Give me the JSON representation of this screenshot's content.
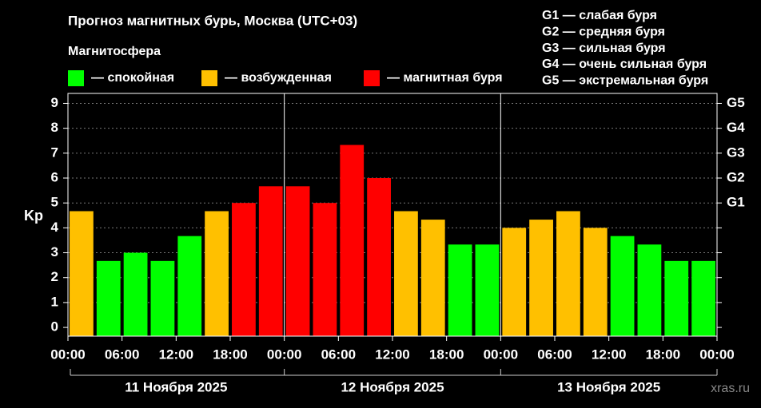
{
  "chart_data": {
    "type": "bar",
    "title": "Прогноз магнитных бурь, Москва (UTC+03)",
    "legend_title": "Магнитосфера",
    "legend": [
      {
        "label": "— спокойная",
        "color": "#00ff00"
      },
      {
        "label": "— возбужденная",
        "color": "#ffc000"
      },
      {
        "label": "— магнитная буря",
        "color": "#ff0000"
      }
    ],
    "storm_levels": [
      "G1 — слабая буря",
      "G2 — средняя буря",
      "G3 — сильная буря",
      "G4 — очень сильная буря",
      "G5 — экстремальная буря"
    ],
    "ylabel": "Kp",
    "x": [
      1.5,
      4.5,
      7.5,
      10.5,
      13.5,
      16.5,
      19.5,
      22.5,
      25.5,
      28.5,
      31.5,
      34.5,
      37.5,
      40.5,
      43.5,
      46.5,
      49.5,
      52.5,
      55.5,
      58.5,
      61.5,
      64.5,
      67.5,
      70.5
    ],
    "values": [
      4.67,
      2.67,
      3,
      2.67,
      3.67,
      4.67,
      5,
      5.67,
      5.67,
      5,
      7.33,
      6,
      4.67,
      4.33,
      3.33,
      3.33,
      4,
      4.33,
      4.67,
      4,
      3.67,
      3.33,
      2.67,
      2.67
    ],
    "colors": [
      "#ffc000",
      "#00ff00",
      "#00ff00",
      "#00ff00",
      "#00ff00",
      "#ffc000",
      "#ff0000",
      "#ff0000",
      "#ff0000",
      "#ff0000",
      "#ff0000",
      "#ff0000",
      "#ffc000",
      "#ffc000",
      "#00ff00",
      "#00ff00",
      "#ffc000",
      "#ffc000",
      "#ffc000",
      "#ffc000",
      "#00ff00",
      "#00ff00",
      "#00ff00",
      "#00ff00"
    ],
    "xlim": [
      0,
      72
    ],
    "xticks": [
      {
        "value": 0,
        "label": "00:00"
      },
      {
        "value": 6,
        "label": "06:00"
      },
      {
        "value": 12,
        "label": "12:00"
      },
      {
        "value": 18,
        "label": "18:00"
      },
      {
        "value": 24,
        "label": "00:00"
      },
      {
        "value": 30,
        "label": "06:00"
      },
      {
        "value": 36,
        "label": "12:00"
      },
      {
        "value": 42,
        "label": "18:00"
      },
      {
        "value": 48,
        "label": "00:00"
      },
      {
        "value": 54,
        "label": "06:00"
      },
      {
        "value": 60,
        "label": "12:00"
      },
      {
        "value": 66,
        "label": "18:00"
      },
      {
        "value": 72,
        "label": "00:00"
      }
    ],
    "day_separators": [
      24,
      48
    ],
    "dates": [
      {
        "value": 12,
        "label": "11 Ноября 2025"
      },
      {
        "value": 36,
        "label": "12 Ноября 2025"
      },
      {
        "value": 60,
        "label": "13 Ноября 2025"
      }
    ],
    "ylim": [
      -0.35,
      9.4
    ],
    "yticks": [
      0,
      1,
      2,
      3,
      4,
      5,
      6,
      7,
      8,
      9
    ],
    "y2lim": [
      -0.35,
      9.4
    ],
    "y2ticks": [
      0,
      1,
      2,
      3,
      4,
      {
        "value": 5,
        "label": "G1"
      },
      {
        "value": 6,
        "label": "G2"
      },
      {
        "value": 7,
        "label": "G3"
      },
      {
        "value": 8,
        "label": "G4"
      },
      {
        "value": 9,
        "label": "G5"
      }
    ],
    "grid": true,
    "watermark": "xras.ru"
  }
}
